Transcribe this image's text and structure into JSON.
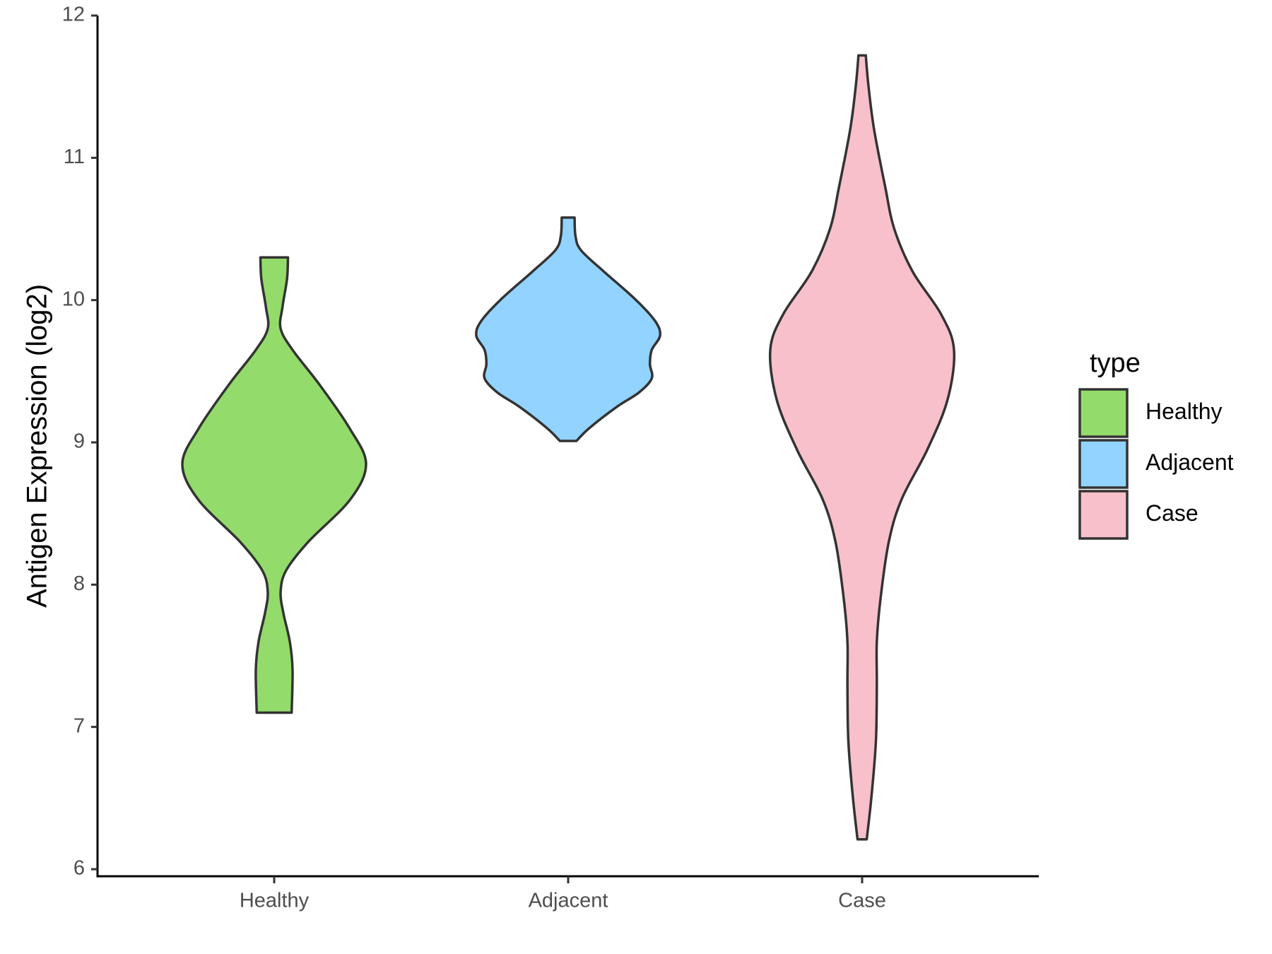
{
  "chart_data": {
    "type": "violin",
    "title": "",
    "xlabel": "",
    "ylabel": "Antigen Expression (log2)",
    "ylim": [
      5.95,
      12
    ],
    "yticks": [
      6,
      7,
      8,
      9,
      10,
      11,
      12
    ],
    "categories": [
      "Healthy",
      "Adjacent",
      "Case"
    ],
    "legend": {
      "title": "type",
      "position": "right"
    },
    "series": [
      {
        "name": "Healthy",
        "color": "#93DB6B",
        "min": 7.1,
        "max": 10.3,
        "density_profile": [
          [
            7.1,
            0.19
          ],
          [
            7.4,
            0.2
          ],
          [
            7.6,
            0.17
          ],
          [
            7.8,
            0.1
          ],
          [
            7.95,
            0.07
          ],
          [
            8.1,
            0.13
          ],
          [
            8.3,
            0.37
          ],
          [
            8.6,
            0.83
          ],
          [
            8.85,
            1.0
          ],
          [
            9.1,
            0.82
          ],
          [
            9.4,
            0.5
          ],
          [
            9.65,
            0.2
          ],
          [
            9.8,
            0.07
          ],
          [
            9.95,
            0.09
          ],
          [
            10.15,
            0.14
          ],
          [
            10.3,
            0.15
          ]
        ]
      },
      {
        "name": "Adjacent",
        "color": "#92D3FF",
        "min": 9.0,
        "max": 10.58,
        "density_profile": [
          [
            9.01,
            0.09
          ],
          [
            9.1,
            0.23
          ],
          [
            9.25,
            0.53
          ],
          [
            9.35,
            0.77
          ],
          [
            9.45,
            0.91
          ],
          [
            9.55,
            0.89
          ],
          [
            9.65,
            0.91
          ],
          [
            9.75,
            1.0
          ],
          [
            9.85,
            0.95
          ],
          [
            10.0,
            0.74
          ],
          [
            10.2,
            0.39
          ],
          [
            10.35,
            0.14
          ],
          [
            10.45,
            0.08
          ],
          [
            10.58,
            0.07
          ]
        ]
      },
      {
        "name": "Case",
        "color": "#F7C0CB",
        "min": 6.2,
        "max": 11.72,
        "density_profile": [
          [
            6.21,
            0.05
          ],
          [
            6.5,
            0.1
          ],
          [
            6.9,
            0.15
          ],
          [
            7.3,
            0.16
          ],
          [
            7.6,
            0.16
          ],
          [
            7.9,
            0.2
          ],
          [
            8.3,
            0.29
          ],
          [
            8.6,
            0.43
          ],
          [
            8.95,
            0.71
          ],
          [
            9.3,
            0.93
          ],
          [
            9.65,
            1.0
          ],
          [
            9.9,
            0.86
          ],
          [
            10.2,
            0.55
          ],
          [
            10.5,
            0.35
          ],
          [
            10.8,
            0.25
          ],
          [
            11.2,
            0.13
          ],
          [
            11.5,
            0.07
          ],
          [
            11.72,
            0.04
          ]
        ]
      }
    ]
  }
}
